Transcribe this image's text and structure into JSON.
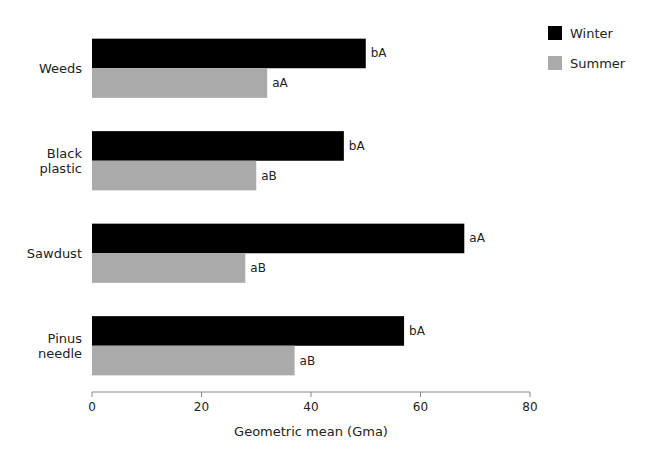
{
  "chart_data": {
    "type": "bar",
    "orientation": "horizontal",
    "categories": [
      "Weeds",
      "Black\nplastic",
      "Sawdust",
      "Pinus\nneedle"
    ],
    "series": [
      {
        "name": "Winter",
        "color": "#000000",
        "values": [
          50,
          46,
          68,
          57
        ],
        "value_labels": [
          "bA",
          "bA",
          "aA",
          "bA"
        ]
      },
      {
        "name": "Summer",
        "color": "#aaaaaa",
        "values": [
          32,
          30,
          28,
          37
        ],
        "value_labels": [
          "aA",
          "aB",
          "aB",
          "aB"
        ]
      }
    ],
    "xlabel": "Geometric mean (Gma)",
    "xlim": [
      0,
      80
    ],
    "xticks": [
      0,
      20,
      40,
      60,
      80
    ],
    "legend": "upper right"
  }
}
